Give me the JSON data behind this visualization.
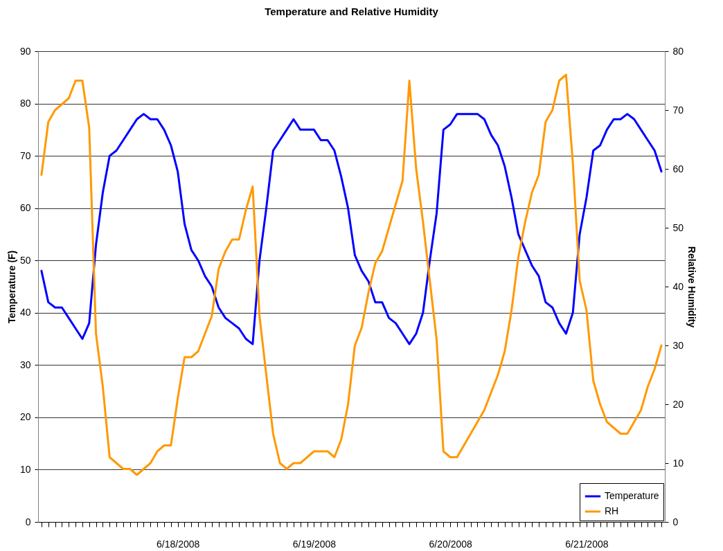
{
  "chart_data": {
    "type": "line",
    "title": "Temperature and Relative Humidity",
    "ylabel": "Temperature (F)",
    "y2label": "Relative Humidity",
    "categories": [
      null,
      null,
      null,
      null,
      null,
      null,
      null,
      null,
      null,
      null,
      null,
      null,
      null,
      null,
      null,
      null,
      null,
      null,
      null,
      null,
      "6/18/2008",
      null,
      null,
      null,
      null,
      null,
      null,
      null,
      null,
      null,
      null,
      null,
      null,
      null,
      null,
      null,
      null,
      null,
      null,
      null,
      "6/19/2008",
      null,
      null,
      null,
      null,
      null,
      null,
      null,
      null,
      null,
      null,
      null,
      null,
      null,
      null,
      null,
      null,
      null,
      null,
      null,
      "6/20/2008",
      null,
      null,
      null,
      null,
      null,
      null,
      null,
      null,
      null,
      null,
      null,
      null,
      null,
      null,
      null,
      null,
      null,
      null,
      null,
      "6/21/2008",
      null,
      null,
      null,
      null,
      null,
      null,
      null,
      null,
      null,
      null,
      null
    ],
    "series": [
      {
        "name": "Temperature",
        "color": "#0000ff",
        "values": [
          48,
          42,
          41,
          41,
          39,
          37,
          35,
          38,
          53,
          63,
          70,
          71,
          73,
          75,
          77,
          78,
          77,
          77,
          75,
          72,
          67,
          57,
          52,
          50,
          47,
          45,
          41,
          39,
          38,
          37,
          35,
          34,
          50,
          60,
          71,
          73,
          75,
          77,
          75,
          75,
          75,
          73,
          73,
          71,
          66,
          60,
          51,
          48,
          46,
          42,
          42,
          39,
          38,
          36,
          34,
          36,
          40,
          50,
          59,
          75,
          76,
          78,
          78,
          78,
          78,
          77,
          74,
          72,
          68,
          62,
          55,
          52,
          49,
          47,
          42,
          41,
          38,
          36,
          40,
          55,
          62,
          71,
          72,
          75,
          77,
          77,
          78,
          77,
          75,
          73,
          71,
          67
        ]
      },
      {
        "name": "RH",
        "color": "#ff9900",
        "axis": "y2",
        "values": [
          59,
          68,
          70,
          71,
          72,
          75,
          75,
          67,
          32,
          23,
          11,
          10,
          9,
          9,
          8,
          9,
          10,
          12,
          13,
          13,
          21,
          28,
          28,
          29,
          32,
          35,
          43,
          46,
          48,
          48,
          53,
          57,
          35,
          25,
          15,
          10,
          9,
          10,
          10,
          11,
          12,
          12,
          12,
          11,
          14,
          20,
          30,
          33,
          39,
          44,
          46,
          50,
          54,
          58,
          75,
          60,
          51,
          41,
          31,
          12,
          11,
          11,
          13,
          15,
          17,
          19,
          22,
          25,
          29,
          36,
          45,
          51,
          56,
          59,
          68,
          70,
          75,
          76,
          61,
          41,
          36,
          24,
          20,
          17,
          16,
          15,
          15,
          17,
          19,
          23,
          26,
          30
        ]
      }
    ],
    "ylim": [
      0,
      90
    ],
    "yticks": [
      0,
      10,
      20,
      30,
      40,
      50,
      60,
      70,
      80,
      90
    ],
    "y2lim": [
      0,
      80
    ],
    "y2ticks": [
      0,
      10,
      20,
      30,
      40,
      50,
      60,
      70,
      80
    ],
    "grid": "y",
    "legend": "bottom right"
  }
}
